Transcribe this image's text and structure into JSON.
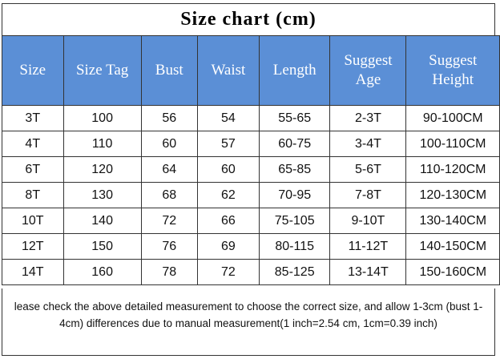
{
  "title": "Size chart (cm)",
  "table": {
    "header": [
      "Size",
      "Size Tag",
      "Bust",
      "Waist",
      "Length",
      "Suggest Age",
      "Suggest Height"
    ],
    "rows": [
      [
        "3T",
        "100",
        "56",
        "54",
        "55-65",
        "2-3T",
        "90-100CM"
      ],
      [
        "4T",
        "110",
        "60",
        "57",
        "60-75",
        "3-4T",
        "100-110CM"
      ],
      [
        "6T",
        "120",
        "64",
        "60",
        "65-85",
        "5-6T",
        "110-120CM"
      ],
      [
        "8T",
        "130",
        "68",
        "62",
        "70-95",
        "7-8T",
        "120-130CM"
      ],
      [
        "10T",
        "140",
        "72",
        "66",
        "75-105",
        "9-10T",
        "130-140CM"
      ],
      [
        "12T",
        "150",
        "76",
        "69",
        "80-115",
        "11-12T",
        "140-150CM"
      ],
      [
        "14T",
        "160",
        "78",
        "72",
        "85-125",
        "13-14T",
        "150-160CM"
      ]
    ]
  },
  "note": "lease check the above detailed measurement to choose the correct size, and allow 1-3cm (bust 1-4cm) differences due to manual measurement(1 inch=2.54 cm, 1cm=0.39 inch)"
}
